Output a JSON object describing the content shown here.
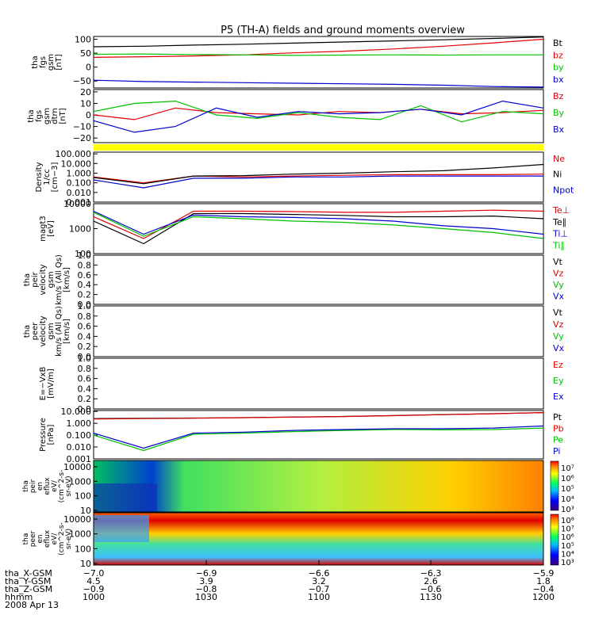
{
  "chart_data": {
    "type": "line",
    "title": "P5 (TH-A) fields and ground moments overview",
    "time_range": [
      "1000",
      "1200"
    ],
    "date": "2008 Apr 13",
    "panels": [
      {
        "id": "fgs-gsm",
        "ylabel": [
          "tha",
          "fgs",
          "gsm",
          "[nT]"
        ],
        "ylim": [
          -75,
          110
        ],
        "ticks": [
          {
            "v": 100,
            "t": "100"
          },
          {
            "v": 50,
            "t": "50"
          },
          {
            "v": 0,
            "t": "0"
          },
          {
            "v": -50,
            "t": "−50"
          }
        ],
        "series": [
          {
            "name": "Bt",
            "color": "#000000",
            "values": [
              73,
              75,
              79,
              82,
              86,
              90,
              94,
              98,
              103,
              108
            ]
          },
          {
            "name": "bz",
            "color": "#e00000",
            "values": [
              35,
              37,
              40,
              44,
              51,
              57,
              65,
              75,
              87,
              100
            ]
          },
          {
            "name": "by",
            "color": "#00c000",
            "values": [
              46,
              47,
              45,
              44,
              42,
              43,
              44,
              43,
              44,
              44
            ]
          },
          {
            "name": "bx",
            "color": "#0000cc",
            "values": [
              -47,
              -52,
              -54,
              -56,
              -58,
              -60,
              -62,
              -65,
              -70,
              -72
            ]
          }
        ]
      },
      {
        "id": "fgs-gsm-detrended",
        "ylabel": [
          "tha",
          "fgs",
          "gsm",
          "dtrn",
          "[nT]"
        ],
        "ylim": [
          -24,
          22
        ],
        "ticks": [
          {
            "v": 20,
            "t": "20"
          },
          {
            "v": 10,
            "t": "10"
          },
          {
            "v": 0,
            "t": "0"
          },
          {
            "v": -10,
            "t": "−10"
          },
          {
            "v": -20,
            "t": "−20"
          }
        ],
        "series": [
          {
            "name": "Bz",
            "color": "#e00000",
            "values": [
              0,
              -4,
              6,
              2,
              1,
              0,
              3,
              2,
              5,
              1,
              2,
              4
            ]
          },
          {
            "name": "By",
            "color": "#00c000",
            "values": [
              3,
              10,
              12,
              0,
              -3,
              2,
              -2,
              -4,
              8,
              -6,
              3,
              1
            ]
          },
          {
            "name": "Bx",
            "color": "#0000cc",
            "values": [
              -5,
              -15,
              -10,
              6,
              -2,
              3,
              1,
              2,
              5,
              0,
              12,
              6
            ]
          }
        ]
      },
      {
        "id": "density",
        "ylabel": [
          "Density",
          "1/cc",
          "[cm−3]"
        ],
        "log": true,
        "ylim": [
          0.001,
          150
        ],
        "ticks": [
          {
            "v": 100,
            "t": "100.000"
          },
          {
            "v": 10,
            "t": "10.000"
          },
          {
            "v": 1,
            "t": "1.000"
          },
          {
            "v": 0.1,
            "t": "0.100"
          },
          {
            "v": 0.01,
            "t": "0.010"
          },
          {
            "v": 0.001,
            "t": "0.001"
          }
        ],
        "series": [
          {
            "name": "Ne",
            "color": "#e00000",
            "values": [
              0.4,
              0.1,
              0.5,
              0.4,
              0.5,
              0.6,
              0.7,
              0.7,
              0.7,
              0.8
            ]
          },
          {
            "name": "Ni",
            "color": "#000000",
            "values": [
              0.35,
              0.08,
              0.5,
              0.55,
              0.8,
              1.0,
              1.4,
              1.8,
              3.5,
              8
            ]
          },
          {
            "name": "Npot",
            "color": "#0000cc",
            "values": [
              0.2,
              0.03,
              0.3,
              0.3,
              0.4,
              0.4,
              0.5,
              0.5,
              0.5,
              0.5
            ]
          }
        ]
      },
      {
        "id": "temperature",
        "ylabel": [
          "magt3",
          "[eV]"
        ],
        "log": true,
        "ylim": [
          100,
          10000
        ],
        "ticks": [
          {
            "v": 10000,
            "t": "10000"
          },
          {
            "v": 1000,
            "t": "1000"
          },
          {
            "v": 100,
            "t": "100"
          }
        ],
        "series": [
          {
            "name": "Te⊥",
            "color": "#e00000",
            "values": [
              3000,
              400,
              5000,
              5000,
              4800,
              4500,
              4500,
              5000,
              5500,
              5000
            ]
          },
          {
            "name": "Te∥",
            "color": "#000000",
            "values": [
              2000,
              250,
              4000,
              4000,
              3700,
              3400,
              3000,
              3000,
              3200,
              2500
            ]
          },
          {
            "name": "Ti⊥",
            "color": "#0000cc",
            "values": [
              5000,
              600,
              3500,
              3000,
              2800,
              2500,
              2000,
              1300,
              1000,
              600
            ]
          },
          {
            "name": "Ti∥",
            "color": "#00c000",
            "values": [
              4500,
              500,
              3000,
              2500,
              2000,
              1800,
              1400,
              1000,
              700,
              400
            ]
          }
        ]
      },
      {
        "id": "peir-velocity",
        "ylabel": [
          "tha",
          "peir",
          "velocity",
          "gsm",
          "km/s (All Qs)",
          "[km/s]"
        ],
        "ylim": [
          0,
          1
        ],
        "ticks": [
          {
            "v": 1,
            "t": "1.0"
          },
          {
            "v": 0.8,
            "t": "0.8"
          },
          {
            "v": 0.6,
            "t": "0.6"
          },
          {
            "v": 0.4,
            "t": "0.4"
          },
          {
            "v": 0.2,
            "t": "0.2"
          },
          {
            "v": 0,
            "t": "0.0"
          }
        ],
        "series": [
          {
            "name": "Vt",
            "color": "#000000",
            "values": []
          },
          {
            "name": "Vz",
            "color": "#e00000",
            "values": []
          },
          {
            "name": "Vy",
            "color": "#00c000",
            "values": []
          },
          {
            "name": "Vx",
            "color": "#0000cc",
            "values": []
          }
        ]
      },
      {
        "id": "peer-velocity",
        "ylabel": [
          "tha",
          "peer",
          "velocity",
          "gsm",
          "km/s (All Qs)",
          "[km/s]"
        ],
        "ylim": [
          0,
          1
        ],
        "ticks": [
          {
            "v": 1,
            "t": "1.0"
          },
          {
            "v": 0.8,
            "t": "0.8"
          },
          {
            "v": 0.6,
            "t": "0.6"
          },
          {
            "v": 0.4,
            "t": "0.4"
          },
          {
            "v": 0.2,
            "t": "0.2"
          },
          {
            "v": 0,
            "t": "0.0"
          }
        ],
        "series": [
          {
            "name": "Vt",
            "color": "#000000",
            "values": []
          },
          {
            "name": "Vz",
            "color": "#e00000",
            "values": []
          },
          {
            "name": "Vy",
            "color": "#00c000",
            "values": []
          },
          {
            "name": "Vx",
            "color": "#0000cc",
            "values": []
          }
        ]
      },
      {
        "id": "efield",
        "ylabel": [
          "E=−VxB",
          "[mV/m]"
        ],
        "ylim": [
          0,
          1
        ],
        "ticks": [
          {
            "v": 1,
            "t": "1.0"
          },
          {
            "v": 0.8,
            "t": "0.8"
          },
          {
            "v": 0.6,
            "t": "0.6"
          },
          {
            "v": 0.4,
            "t": "0.4"
          },
          {
            "v": 0.2,
            "t": "0.2"
          },
          {
            "v": 0,
            "t": "0.0"
          }
        ],
        "series": [
          {
            "name": "Ez",
            "color": "#e00000",
            "values": []
          },
          {
            "name": "Ey",
            "color": "#00c000",
            "values": []
          },
          {
            "name": "Ex",
            "color": "#0000cc",
            "values": []
          }
        ]
      },
      {
        "id": "pressure",
        "ylabel": [
          "Pressure",
          "[nPa]"
        ],
        "log": true,
        "ylim": [
          0.001,
          12
        ],
        "ticks": [
          {
            "v": 10,
            "t": "10.000"
          },
          {
            "v": 1,
            "t": "1.000"
          },
          {
            "v": 0.1,
            "t": "0.100"
          },
          {
            "v": 0.01,
            "t": "0.010"
          },
          {
            "v": 0.001,
            "t": "0.001"
          }
        ],
        "series": [
          {
            "name": "Pt",
            "color": "#000000",
            "values": [
              2.5,
              2.6,
              2.8,
              3.0,
              3.4,
              3.8,
              4.5,
              5.5,
              6.5,
              8
            ]
          },
          {
            "name": "Pb",
            "color": "#e00000",
            "values": [
              2.3,
              2.5,
              2.7,
              3.0,
              3.3,
              3.7,
              4.4,
              5.4,
              6.4,
              8
            ]
          },
          {
            "name": "Pe",
            "color": "#00c000",
            "values": [
              0.1,
              0.005,
              0.12,
              0.15,
              0.2,
              0.25,
              0.3,
              0.28,
              0.3,
              0.4
            ]
          },
          {
            "name": "Pi",
            "color": "#0000cc",
            "values": [
              0.15,
              0.008,
              0.15,
              0.18,
              0.25,
              0.3,
              0.35,
              0.35,
              0.4,
              0.6
            ]
          }
        ]
      }
    ],
    "spectrograms": [
      {
        "id": "peir-eflux",
        "ylabel": [
          "tha",
          "peir",
          "en",
          "eflux",
          "eV/",
          "(cm^2-s-",
          "sr-eV)"
        ],
        "yticks": [
          "10000",
          "1000",
          "100",
          "10"
        ],
        "colorbar": [
          "10⁷",
          "10⁶",
          "10⁵",
          "10⁴",
          "10³"
        ]
      },
      {
        "id": "peer-eflux",
        "ylabel": [
          "tha",
          "peer",
          "en",
          "eflux",
          "eV/",
          "(cm^2-s-",
          "sr-eV)"
        ],
        "yticks": [
          "10000",
          "1000",
          "100",
          "10"
        ],
        "colorbar": [
          "10⁸",
          "10⁷",
          "10⁶",
          "10⁵",
          "10⁴",
          "10³"
        ]
      }
    ],
    "footer": {
      "rows": [
        {
          "label": "tha_X-GSM",
          "values": [
            "−7.0",
            "−6.9",
            "−6.6",
            "−6.3",
            "−5.9"
          ]
        },
        {
          "label": "tha_Y-GSM",
          "values": [
            "4.5",
            "3.9",
            "3.2",
            "2.6",
            "1.8"
          ]
        },
        {
          "label": "tha_Z-GSM",
          "values": [
            "−0.9",
            "−0.8",
            "−0.7",
            "−0.6",
            "−0.4"
          ]
        },
        {
          "label": "hhmm",
          "values": [
            "1000",
            "1030",
            "1100",
            "1130",
            "1200"
          ]
        }
      ],
      "date_label": "2008 Apr 13"
    }
  }
}
